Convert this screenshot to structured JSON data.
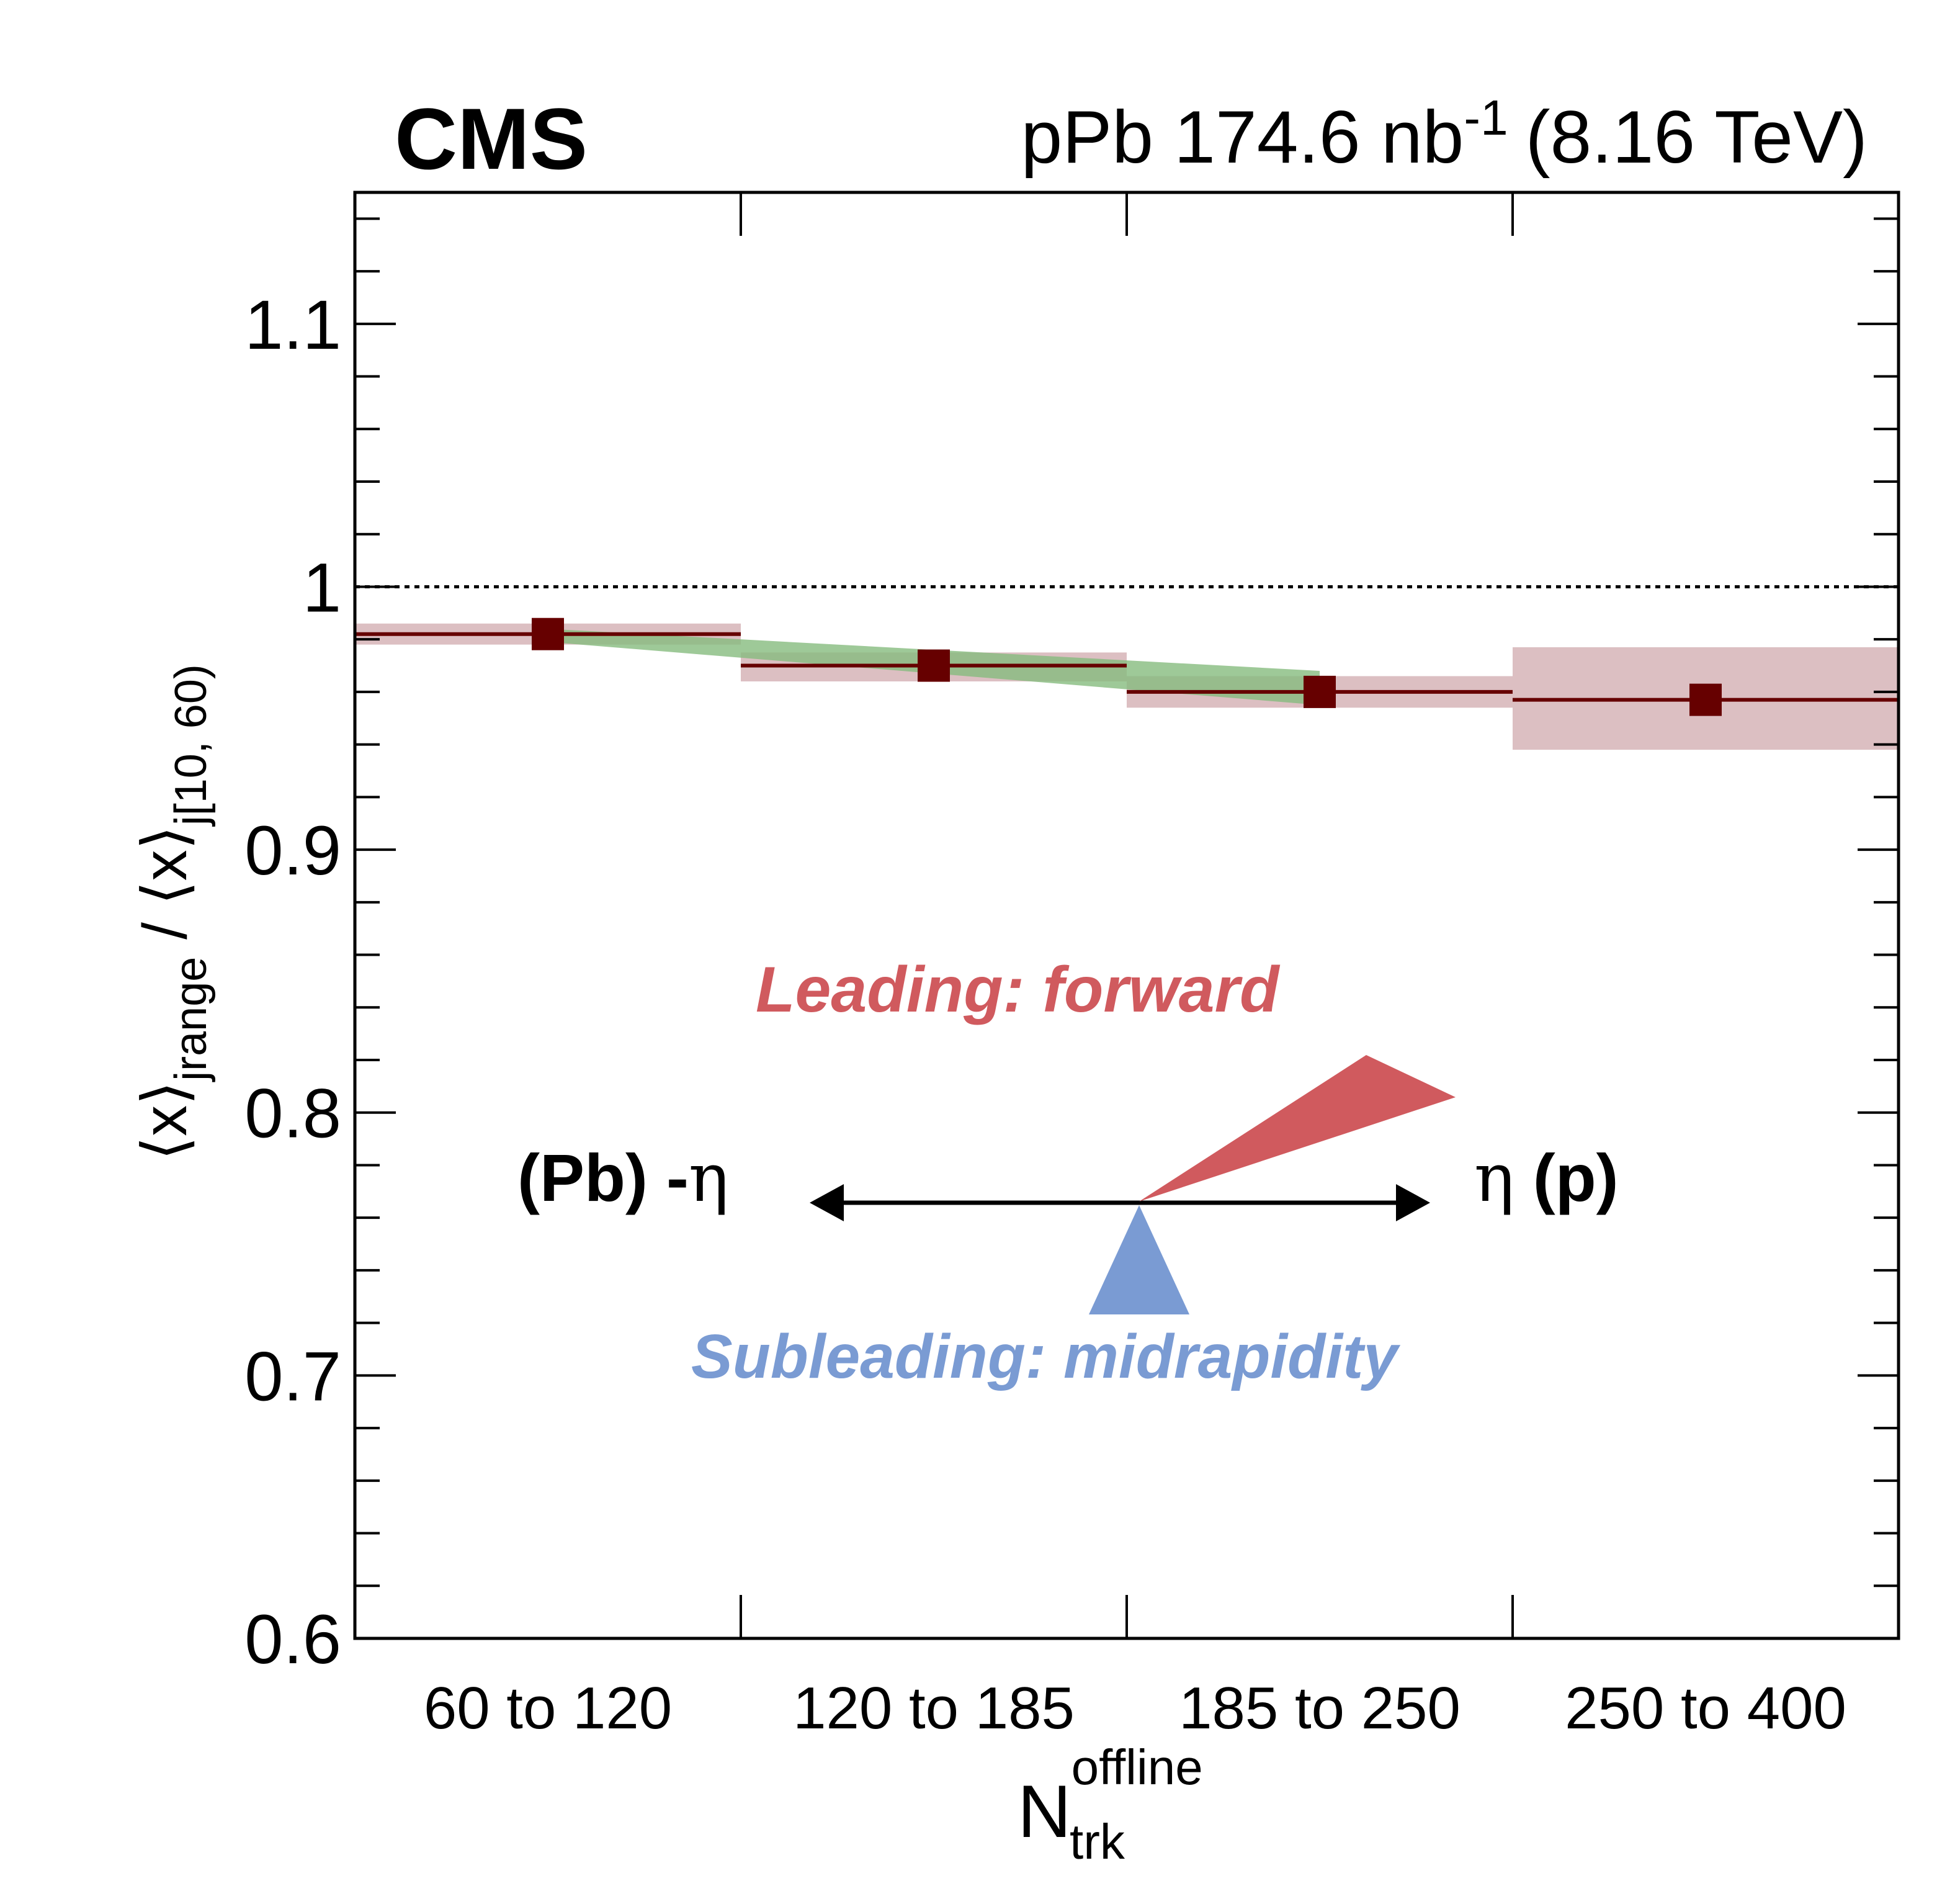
{
  "header": {
    "experiment": "CMS",
    "lumi_prefix": "pPb 174.6 nb",
    "lumi_exp": "-1",
    "energy": "(8.16 TeV)"
  },
  "axis": {
    "ylabel": {
      "lb1": "⟨",
      "x1": "x",
      "rb1": "⟩",
      "sub1": "j",
      "sub1b": "range",
      "slash": " / ",
      "lb2": "⟨",
      "x2": "x",
      "rb2": "⟩",
      "sub2": "j",
      "sub2b": "[10, 60)"
    },
    "xlabel": {
      "main": "N",
      "sup": "offline",
      "sub": "trk"
    }
  },
  "chart_data": {
    "type": "scatter",
    "categories": [
      "60 to 120",
      "120 to 185",
      "185 to 250",
      "250 to 400"
    ],
    "ylim": [
      0.6,
      1.15
    ],
    "yticks": [
      0.6,
      0.7,
      0.8,
      0.9,
      1,
      1.1
    ],
    "ytick_labels": [
      "0.6",
      "0.7",
      "0.8",
      "0.9",
      "1",
      "1.1"
    ],
    "reference_line": 1.0,
    "series": [
      {
        "values": [
          0.982,
          0.97,
          0.96,
          0.957
        ],
        "syst_low": [
          0.978,
          0.964,
          0.954,
          0.938
        ],
        "syst_high": [
          0.986,
          0.975,
          0.966,
          0.977
        ],
        "color": "#660000",
        "band_color": "#c08a90"
      }
    ],
    "band": {
      "x": [
        0.5,
        2.5
      ],
      "low": [
        0.979,
        0.955
      ],
      "high": [
        0.984,
        0.968
      ],
      "color": "#86bc7e"
    }
  },
  "diagram": {
    "left_label": "(Pb) -",
    "eta": "η",
    "right_label": " (p)",
    "leading": "Leading: forward",
    "subleading": "Subleading: midrapidity",
    "leading_color": "#d05a5e",
    "subleading_color": "#7a9bd3"
  }
}
